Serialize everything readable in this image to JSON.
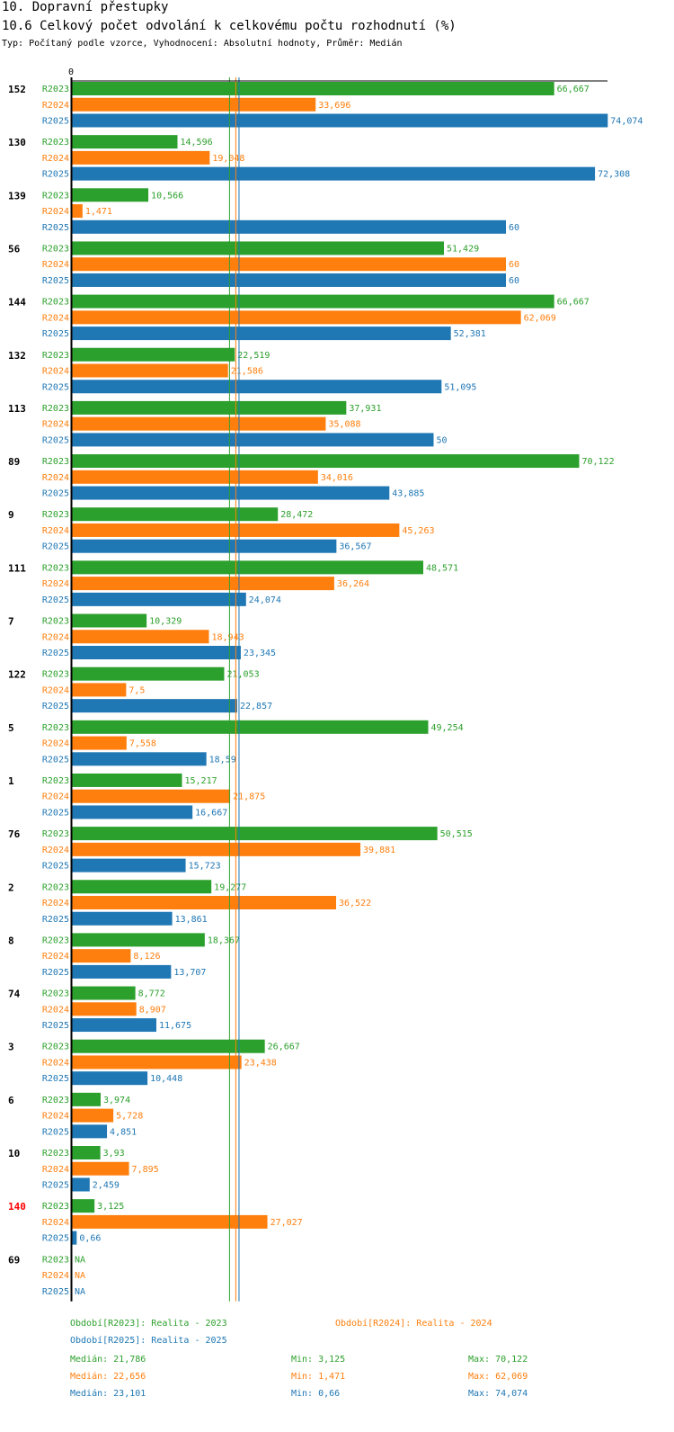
{
  "header": {
    "title": "10. Dopravní přestupky",
    "subtitle": "10.6 Celkový počet odvolání k celkovému počtu rozhodnutí (%)",
    "meta": "Typ: Počítaný podle vzorce, Vyhodnocení: Absolutní hodnoty, Průměr: Medián"
  },
  "colors": {
    "R2023": "#2ca02c",
    "R2024": "#ff7f0e",
    "R2025": "#1f77b4",
    "highlight": "#ff0000",
    "axis": "#000000"
  },
  "chart_data": {
    "type": "bar",
    "orientation": "horizontal",
    "title": "10.6 Celkový počet odvolání k celkovému počtu rozhodnutí (%)",
    "axis_zero_label": "0",
    "xlim": [
      0,
      79
    ],
    "series_names": [
      "R2023",
      "R2024",
      "R2025"
    ],
    "categories": [
      {
        "label": "152",
        "highlight": false,
        "values": [
          66.667,
          33.696,
          74.074
        ],
        "labels": [
          "66,667",
          "33,696",
          "74,074"
        ]
      },
      {
        "label": "130",
        "highlight": false,
        "values": [
          14.596,
          19.048,
          72.308
        ],
        "labels": [
          "14,596",
          "19,048",
          "72,308"
        ]
      },
      {
        "label": "139",
        "highlight": false,
        "values": [
          10.566,
          1.471,
          60
        ],
        "labels": [
          "10,566",
          "1,471",
          "60"
        ]
      },
      {
        "label": "56",
        "highlight": false,
        "values": [
          51.429,
          60,
          60
        ],
        "labels": [
          "51,429",
          "60",
          "60"
        ]
      },
      {
        "label": "144",
        "highlight": false,
        "values": [
          66.667,
          62.069,
          52.381
        ],
        "labels": [
          "66,667",
          "62,069",
          "52,381"
        ]
      },
      {
        "label": "132",
        "highlight": false,
        "values": [
          22.519,
          21.586,
          51.095
        ],
        "labels": [
          "22,519",
          "21,586",
          "51,095"
        ]
      },
      {
        "label": "113",
        "highlight": false,
        "values": [
          37.931,
          35.088,
          50
        ],
        "labels": [
          "37,931",
          "35,088",
          "50"
        ]
      },
      {
        "label": "89",
        "highlight": false,
        "values": [
          70.122,
          34.016,
          43.885
        ],
        "labels": [
          "70,122",
          "34,016",
          "43,885"
        ]
      },
      {
        "label": "9",
        "highlight": false,
        "values": [
          28.472,
          45.263,
          36.567
        ],
        "labels": [
          "28,472",
          "45,263",
          "36,567"
        ]
      },
      {
        "label": "111",
        "highlight": false,
        "values": [
          48.571,
          36.264,
          24.074
        ],
        "labels": [
          "48,571",
          "36,264",
          "24,074"
        ]
      },
      {
        "label": "7",
        "highlight": false,
        "values": [
          10.329,
          18.943,
          23.345
        ],
        "labels": [
          "10,329",
          "18,943",
          "23,345"
        ]
      },
      {
        "label": "122",
        "highlight": false,
        "values": [
          21.053,
          7.5,
          22.857
        ],
        "labels": [
          "21,053",
          "7,5",
          "22,857"
        ]
      },
      {
        "label": "5",
        "highlight": false,
        "values": [
          49.254,
          7.558,
          18.59
        ],
        "labels": [
          "49,254",
          "7,558",
          "18,59"
        ]
      },
      {
        "label": "1",
        "highlight": false,
        "values": [
          15.217,
          21.875,
          16.667
        ],
        "labels": [
          "15,217",
          "21,875",
          "16,667"
        ]
      },
      {
        "label": "76",
        "highlight": false,
        "values": [
          50.515,
          39.881,
          15.723
        ],
        "labels": [
          "50,515",
          "39,881",
          "15,723"
        ]
      },
      {
        "label": "2",
        "highlight": false,
        "values": [
          19.277,
          36.522,
          13.861
        ],
        "labels": [
          "19,277",
          "36,522",
          "13,861"
        ]
      },
      {
        "label": "8",
        "highlight": false,
        "values": [
          18.367,
          8.126,
          13.707
        ],
        "labels": [
          "18,367",
          "8,126",
          "13,707"
        ]
      },
      {
        "label": "74",
        "highlight": false,
        "values": [
          8.772,
          8.907,
          11.675
        ],
        "labels": [
          "8,772",
          "8,907",
          "11,675"
        ]
      },
      {
        "label": "3",
        "highlight": false,
        "values": [
          26.667,
          23.438,
          10.448
        ],
        "labels": [
          "26,667",
          "23,438",
          "10,448"
        ]
      },
      {
        "label": "6",
        "highlight": false,
        "values": [
          3.974,
          5.728,
          4.851
        ],
        "labels": [
          "3,974",
          "5,728",
          "4,851"
        ]
      },
      {
        "label": "10",
        "highlight": false,
        "values": [
          3.93,
          7.895,
          2.459
        ],
        "labels": [
          "3,93",
          "7,895",
          "2,459"
        ]
      },
      {
        "label": "140",
        "highlight": true,
        "values": [
          3.125,
          27.027,
          0.66
        ],
        "labels": [
          "3,125",
          "27,027",
          "0,66"
        ]
      },
      {
        "label": "69",
        "highlight": false,
        "values": [
          null,
          null,
          null
        ],
        "labels": [
          "NA",
          "NA",
          "NA"
        ]
      }
    ],
    "medians": [
      21.786,
      22.656,
      23.101
    ]
  },
  "legend": {
    "period_2023": "Období[R2023]: Realita - 2023",
    "period_2024": "Období[R2024]: Realita - 2024",
    "period_2025": "Období[R2025]: Realita - 2025",
    "stats": [
      {
        "median": "Medián: 21,786",
        "min": "Min: 3,125",
        "max": "Max: 70,122"
      },
      {
        "median": "Medián: 22,656",
        "min": "Min: 1,471",
        "max": "Max: 62,069"
      },
      {
        "median": "Medián: 23,101",
        "min": "Min: 0,66",
        "max": "Max: 74,074"
      }
    ]
  }
}
